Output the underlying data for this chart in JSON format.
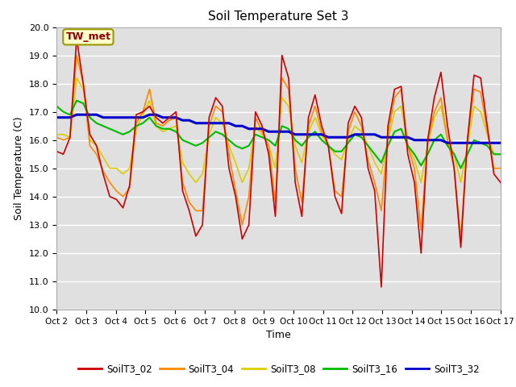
{
  "title": "Soil Temperature Set 3",
  "xlabel": "Time",
  "ylabel": "Soil Temperature (C)",
  "ylim": [
    10.0,
    20.0
  ],
  "yticks": [
    10.0,
    11.0,
    12.0,
    13.0,
    14.0,
    15.0,
    16.0,
    17.0,
    18.0,
    19.0,
    20.0
  ],
  "xtick_labels": [
    "Oct 2",
    "Oct 3",
    "Oct 4",
    "Oct 5",
    "Oct 6",
    "Oct 7",
    "Oct 8",
    "Oct 9",
    "Oct 10",
    "Oct 11",
    "Oct 12",
    "Oct 13",
    "Oct 14",
    "Oct 15",
    "Oct 16",
    "Oct 17"
  ],
  "annotation": "TW_met",
  "colors": {
    "SoilT3_02": "#cc0000",
    "SoilT3_04": "#ff8800",
    "SoilT3_08": "#ddcc00",
    "SoilT3_16": "#00bb00",
    "SoilT3_32": "#0000cc"
  },
  "bg_color": "#e0e0e0",
  "series": {
    "SoilT3_02": [
      15.6,
      15.5,
      16.1,
      19.6,
      18.0,
      16.2,
      15.8,
      14.8,
      14.0,
      13.9,
      13.6,
      14.4,
      16.9,
      17.0,
      17.2,
      16.8,
      16.6,
      16.8,
      17.0,
      14.2,
      13.5,
      12.6,
      13.0,
      16.8,
      17.5,
      17.2,
      15.0,
      14.0,
      12.5,
      13.0,
      17.0,
      16.5,
      15.5,
      13.3,
      19.0,
      18.2,
      14.5,
      13.3,
      16.8,
      17.6,
      16.5,
      15.8,
      14.0,
      13.4,
      16.6,
      17.2,
      16.8,
      15.0,
      14.2,
      10.8,
      16.5,
      17.8,
      17.9,
      15.5,
      14.5,
      12.0,
      16.0,
      17.5,
      18.4,
      16.5,
      15.0,
      12.2,
      16.0,
      18.3,
      18.2,
      16.5,
      14.8,
      14.5
    ],
    "SoilT3_04": [
      16.1,
      16.0,
      16.1,
      19.0,
      18.0,
      15.8,
      15.5,
      14.9,
      14.5,
      14.2,
      14.0,
      14.3,
      16.6,
      17.0,
      17.8,
      16.6,
      16.5,
      16.7,
      16.8,
      14.5,
      13.8,
      13.5,
      13.5,
      16.5,
      17.2,
      17.0,
      15.5,
      14.2,
      13.0,
      14.0,
      16.8,
      16.3,
      15.8,
      13.8,
      18.2,
      17.8,
      15.0,
      13.8,
      16.5,
      17.2,
      16.3,
      15.8,
      14.2,
      14.0,
      16.3,
      17.0,
      16.5,
      15.3,
      14.5,
      13.5,
      16.2,
      17.5,
      17.8,
      15.8,
      15.0,
      12.8,
      16.0,
      17.0,
      17.5,
      16.0,
      15.0,
      12.5,
      16.0,
      17.8,
      17.7,
      16.3,
      15.0,
      15.0
    ],
    "SoilT3_08": [
      16.2,
      16.2,
      16.1,
      18.2,
      17.8,
      16.0,
      15.8,
      15.4,
      15.0,
      15.0,
      14.8,
      15.0,
      16.4,
      16.9,
      17.4,
      16.5,
      16.3,
      16.4,
      16.5,
      15.2,
      14.8,
      14.5,
      14.8,
      16.2,
      16.8,
      16.6,
      15.8,
      15.2,
      14.5,
      15.0,
      16.5,
      16.2,
      15.8,
      15.0,
      17.5,
      17.2,
      15.8,
      15.2,
      16.3,
      16.8,
      16.2,
      15.8,
      15.5,
      15.3,
      16.0,
      16.5,
      16.3,
      15.8,
      15.2,
      14.8,
      16.0,
      17.0,
      17.2,
      15.8,
      15.3,
      14.5,
      15.8,
      16.8,
      17.2,
      16.0,
      15.5,
      14.5,
      15.8,
      17.2,
      17.0,
      16.2,
      15.5,
      15.5
    ],
    "SoilT3_16": [
      17.2,
      17.0,
      16.9,
      17.4,
      17.3,
      16.8,
      16.6,
      16.5,
      16.4,
      16.3,
      16.2,
      16.3,
      16.5,
      16.6,
      16.8,
      16.5,
      16.4,
      16.4,
      16.3,
      16.0,
      15.9,
      15.8,
      15.9,
      16.1,
      16.3,
      16.2,
      16.0,
      15.8,
      15.7,
      15.8,
      16.2,
      16.1,
      16.0,
      15.8,
      16.5,
      16.4,
      16.0,
      15.8,
      16.1,
      16.3,
      16.0,
      15.8,
      15.6,
      15.6,
      15.9,
      16.2,
      16.1,
      15.8,
      15.5,
      15.2,
      15.8,
      16.3,
      16.4,
      15.8,
      15.5,
      15.1,
      15.5,
      16.0,
      16.2,
      15.8,
      15.5,
      15.0,
      15.5,
      16.0,
      15.9,
      15.8,
      15.5,
      15.5
    ],
    "SoilT3_32": [
      16.8,
      16.8,
      16.8,
      16.9,
      16.9,
      16.9,
      16.9,
      16.8,
      16.8,
      16.8,
      16.8,
      16.8,
      16.8,
      16.8,
      16.9,
      16.9,
      16.8,
      16.8,
      16.8,
      16.7,
      16.7,
      16.6,
      16.6,
      16.6,
      16.6,
      16.6,
      16.6,
      16.5,
      16.5,
      16.4,
      16.4,
      16.4,
      16.3,
      16.3,
      16.3,
      16.3,
      16.2,
      16.2,
      16.2,
      16.2,
      16.2,
      16.1,
      16.1,
      16.1,
      16.1,
      16.2,
      16.2,
      16.2,
      16.2,
      16.1,
      16.1,
      16.1,
      16.1,
      16.1,
      16.0,
      16.0,
      16.0,
      16.0,
      16.0,
      15.9,
      15.9,
      15.9,
      15.9,
      15.9,
      15.9,
      15.9,
      15.9,
      15.9
    ]
  },
  "n_points": 68,
  "figsize": [
    6.4,
    4.8
  ],
  "dpi": 100
}
